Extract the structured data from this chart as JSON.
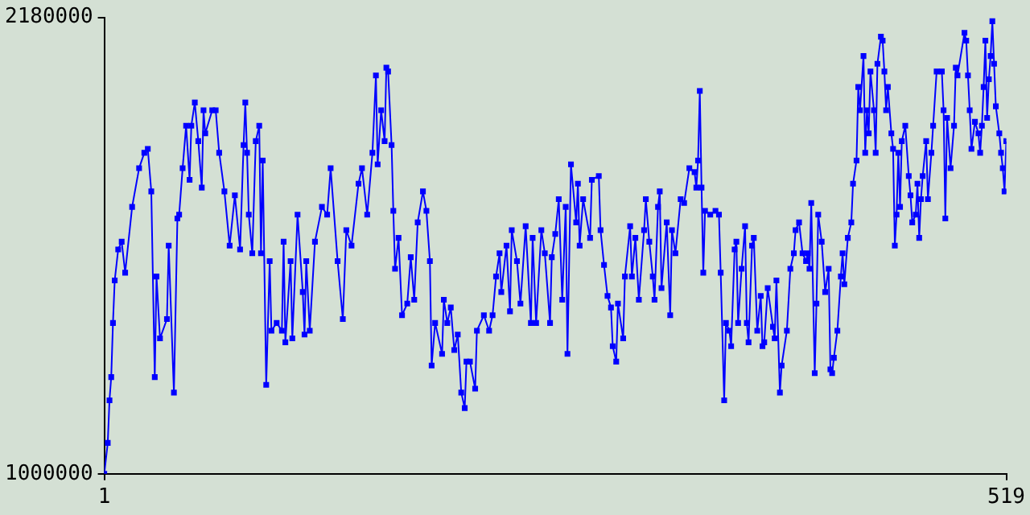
{
  "chart_data": {
    "type": "line",
    "marker": "square",
    "grid": false,
    "legend": false,
    "line_style": "solid",
    "xlim": [
      1,
      519
    ],
    "xticks": [
      1,
      519
    ],
    "ylim": [
      1000000,
      2180000
    ],
    "yticks": [
      1000000,
      2180000
    ],
    "x": [
      1,
      3,
      4,
      5,
      6,
      7,
      9,
      11,
      13,
      17,
      21,
      24,
      26,
      28,
      30,
      31,
      33,
      37,
      38,
      41,
      43,
      44,
      46,
      48,
      50,
      51,
      53,
      55,
      57,
      58,
      59,
      63,
      65,
      67,
      70,
      73,
      76,
      79,
      81,
      82,
      83,
      84,
      86,
      88,
      90,
      91,
      92,
      94,
      96,
      97,
      100,
      103,
      104,
      105,
      108,
      109,
      112,
      115,
      116,
      117,
      119,
      122,
      126,
      129,
      131,
      135,
      138,
      140,
      143,
      147,
      149,
      152,
      155,
      157,
      158,
      160,
      162,
      163,
      164,
      166,
      167,
      168,
      170,
      172,
      175,
      177,
      179,
      181,
      184,
      186,
      188,
      189,
      191,
      195,
      196,
      198,
      200,
      202,
      204,
      206,
      208,
      209,
      211,
      214,
      215,
      219,
      222,
      224,
      226,
      228,
      229,
      232,
      234,
      235,
      238,
      240,
      243,
      246,
      247,
      249,
      252,
      254,
      257,
      258,
      260,
      262,
      264,
      266,
      267,
      269,
      272,
      273,
      274,
      276,
      280,
      281,
      285,
      286,
      288,
      290,
      292,
      293,
      295,
      296,
      299,
      300,
      303,
      304,
      306,
      308,
      311,
      312,
      314,
      316,
      317,
      319,
      320,
      321,
      324,
      326,
      327,
      329,
      332,
      334,
      337,
      340,
      341,
      342,
      343,
      344,
      345,
      346,
      349,
      352,
      354,
      355,
      357,
      358,
      360,
      361,
      363,
      364,
      365,
      367,
      369,
      370,
      371,
      373,
      374,
      376,
      378,
      379,
      380,
      382,
      385,
      386,
      387,
      389,
      390,
      393,
      395,
      397,
      398,
      400,
      402,
      404,
      405,
      406,
      407,
      409,
      410,
      411,
      413,
      415,
      417,
      418,
      419,
      420,
      422,
      424,
      425,
      426,
      428,
      430,
      431,
      433,
      434,
      435,
      437,
      438,
      439,
      440,
      441,
      443,
      444,
      445,
      447,
      448,
      449,
      450,
      451,
      453,
      454,
      455,
      456,
      457,
      458,
      459,
      461,
      463,
      464,
      465,
      467,
      468,
      469,
      470,
      471,
      473,
      474,
      476,
      477,
      479,
      482,
      483,
      484,
      485,
      487,
      489,
      490,
      491,
      495,
      496,
      497,
      498,
      499,
      501,
      503,
      504,
      505,
      506,
      507,
      508,
      509,
      510,
      511,
      512,
      513,
      515,
      516,
      517,
      518,
      519
    ],
    "series": [
      {
        "color": "#0000ff",
        "values": [
          1000000,
          1080000,
          1190000,
          1250000,
          1390000,
          1500000,
          1580000,
          1600000,
          1520000,
          1690000,
          1790000,
          1830000,
          1840000,
          1730000,
          1250000,
          1510000,
          1350000,
          1400000,
          1590000,
          1210000,
          1660000,
          1670000,
          1790000,
          1900000,
          1760000,
          1900000,
          1960000,
          1860000,
          1740000,
          1940000,
          1880000,
          1940000,
          1940000,
          1830000,
          1730000,
          1590000,
          1720000,
          1580000,
          1850000,
          1960000,
          1830000,
          1670000,
          1570000,
          1860000,
          1900000,
          1570000,
          1810000,
          1230000,
          1550000,
          1370000,
          1390000,
          1370000,
          1600000,
          1340000,
          1550000,
          1350000,
          1670000,
          1470000,
          1360000,
          1550000,
          1370000,
          1600000,
          1690000,
          1670000,
          1790000,
          1550000,
          1400000,
          1630000,
          1590000,
          1750000,
          1790000,
          1670000,
          1830000,
          2030000,
          1800000,
          1940000,
          1860000,
          2050000,
          2040000,
          1850000,
          1680000,
          1530000,
          1610000,
          1410000,
          1440000,
          1560000,
          1450000,
          1650000,
          1730000,
          1680000,
          1550000,
          1280000,
          1390000,
          1310000,
          1450000,
          1390000,
          1430000,
          1320000,
          1360000,
          1210000,
          1170000,
          1290000,
          1290000,
          1220000,
          1370000,
          1410000,
          1370000,
          1410000,
          1510000,
          1570000,
          1470000,
          1590000,
          1420000,
          1630000,
          1550000,
          1440000,
          1640000,
          1390000,
          1610000,
          1390000,
          1630000,
          1570000,
          1390000,
          1560000,
          1620000,
          1710000,
          1450000,
          1690000,
          1310000,
          1800000,
          1650000,
          1750000,
          1590000,
          1710000,
          1610000,
          1760000,
          1770000,
          1630000,
          1540000,
          1460000,
          1430000,
          1330000,
          1290000,
          1440000,
          1350000,
          1510000,
          1640000,
          1510000,
          1610000,
          1450000,
          1630000,
          1710000,
          1600000,
          1510000,
          1450000,
          1690000,
          1730000,
          1480000,
          1650000,
          1410000,
          1630000,
          1570000,
          1710000,
          1700000,
          1790000,
          1780000,
          1740000,
          1810000,
          1990000,
          1740000,
          1520000,
          1680000,
          1670000,
          1680000,
          1670000,
          1520000,
          1190000,
          1390000,
          1370000,
          1330000,
          1580000,
          1600000,
          1390000,
          1530000,
          1640000,
          1390000,
          1340000,
          1590000,
          1610000,
          1370000,
          1460000,
          1330000,
          1340000,
          1480000,
          1380000,
          1350000,
          1500000,
          1210000,
          1280000,
          1370000,
          1530000,
          1570000,
          1630000,
          1650000,
          1570000,
          1550000,
          1570000,
          1530000,
          1700000,
          1260000,
          1440000,
          1670000,
          1600000,
          1470000,
          1530000,
          1270000,
          1260000,
          1300000,
          1370000,
          1510000,
          1570000,
          1490000,
          1610000,
          1650000,
          1750000,
          1810000,
          2000000,
          1940000,
          2080000,
          1830000,
          1940000,
          1880000,
          2040000,
          1940000,
          1830000,
          2060000,
          2130000,
          2120000,
          2040000,
          1940000,
          2000000,
          1880000,
          1840000,
          1590000,
          1670000,
          1830000,
          1690000,
          1860000,
          1900000,
          1770000,
          1720000,
          1650000,
          1670000,
          1750000,
          1610000,
          1710000,
          1770000,
          1860000,
          1710000,
          1830000,
          1900000,
          2040000,
          2040000,
          1940000,
          1660000,
          1920000,
          1790000,
          1900000,
          2050000,
          2030000,
          2140000,
          2120000,
          2030000,
          1940000,
          1840000,
          1910000,
          1880000,
          1830000,
          1900000,
          2000000,
          2120000,
          1920000,
          2020000,
          2080000,
          2170000,
          2060000,
          1950000,
          1880000,
          1830000,
          1790000,
          1730000,
          1860000
        ]
      }
    ]
  }
}
